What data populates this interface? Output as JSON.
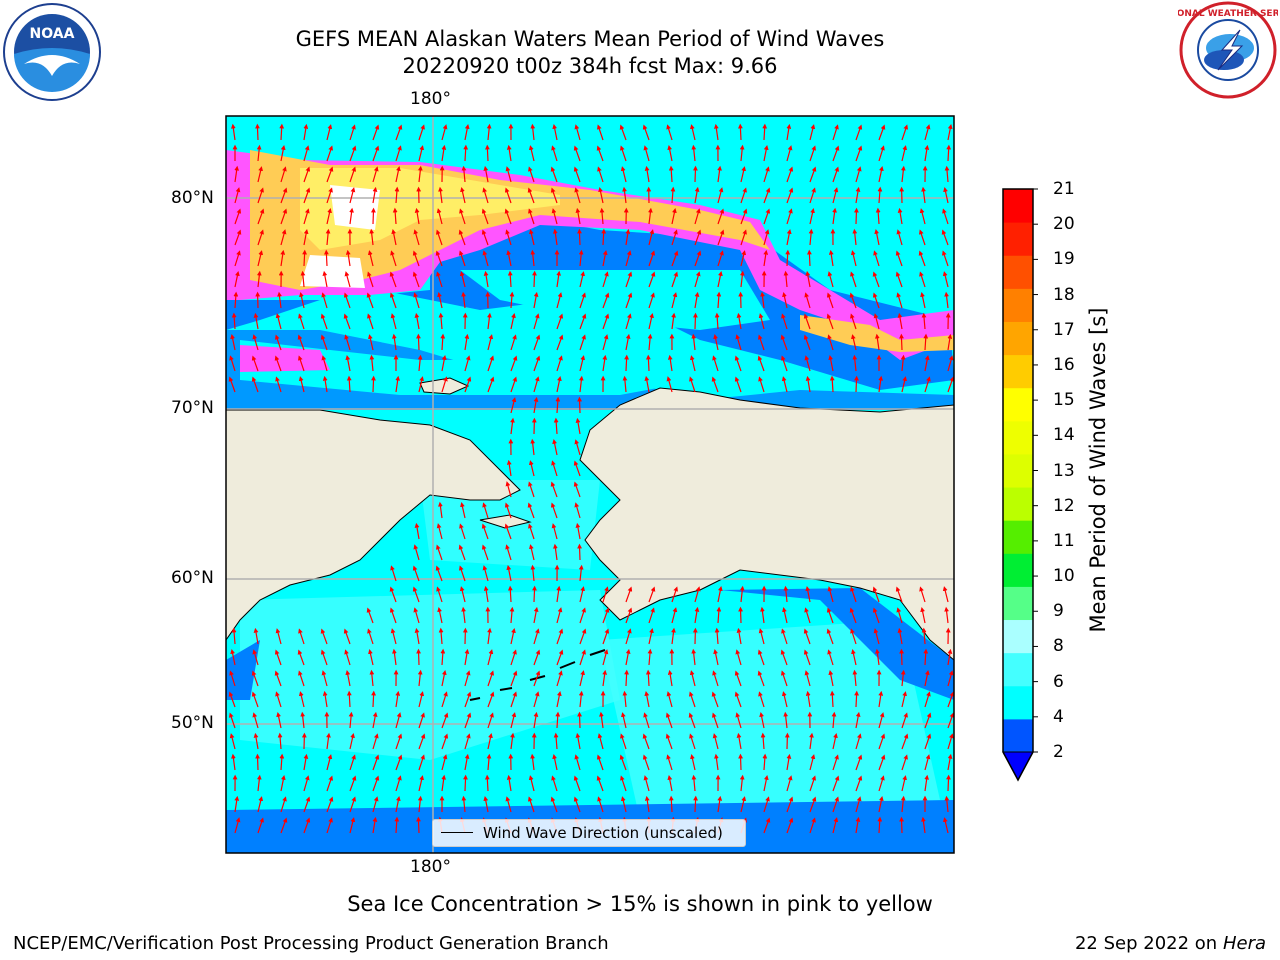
{
  "title": {
    "line1": "GEFS MEAN Alaskan Waters Mean Period of Wind Waves",
    "line2": "20220920 t00z 384h fcst   Max: 9.66"
  },
  "logos": {
    "noaa": {
      "icon": "noaa-logo-icon",
      "text": "NOAA"
    },
    "nws": {
      "icon": "nws-logo-icon",
      "text": "NATIONAL WEATHER SERVICE"
    }
  },
  "map": {
    "lon_label_top": "180°",
    "lon_label_bottom": "180°",
    "lat_labels": [
      "80°N",
      "70°N",
      "60°N",
      "50°N"
    ],
    "legend_label": "Wind Wave Direction (unscaled)",
    "colors": {
      "land": "#efecdc",
      "coast": "#000000",
      "grid": "#b0b0b0",
      "arrow": "#ff0000",
      "ice_pink": "#ff55ff",
      "ice_orange": "#ffcc55",
      "ice_yellow": "#ffee66"
    }
  },
  "colorbar": {
    "title": "Mean Period of Wind Waves [s]",
    "ticks": [
      "21",
      "20",
      "19",
      "18",
      "17",
      "16",
      "15",
      "14",
      "13",
      "12",
      "11",
      "10",
      "9",
      "8",
      "6",
      "4",
      "2"
    ],
    "colors": [
      "#0055ff",
      "#00ffff",
      "#44ffff",
      "#aaffff",
      "#55ff88",
      "#00ee33",
      "#55ee00",
      "#bbff00",
      "#ddff00",
      "#eeff00",
      "#ffff00",
      "#ffcc00",
      "#ffa500",
      "#ff8000",
      "#ff5000",
      "#ff2000",
      "#ff0000"
    ],
    "under_color": "#0000ff"
  },
  "notes": {
    "sea_ice": "Sea Ice Concentration > 15% is shown in pink to yellow"
  },
  "footer": {
    "left": "NCEP/EMC/Verification Post Processing Product Generation Branch",
    "right_date": "22 Sep 2022 on",
    "right_host": "Hera"
  }
}
